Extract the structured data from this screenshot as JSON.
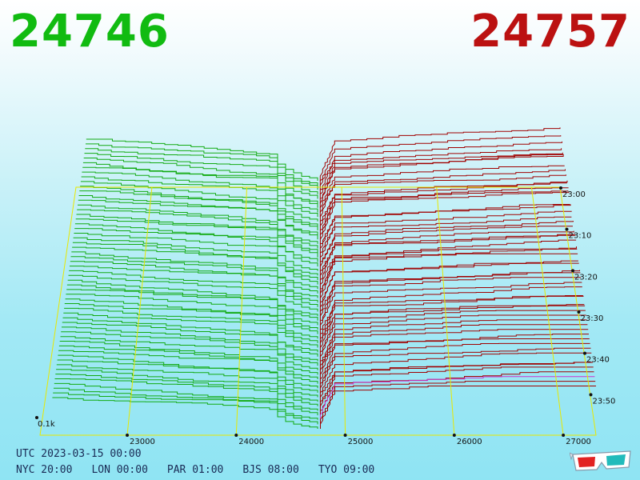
{
  "bid_price": "24746",
  "ask_price": "24757",
  "utc_label": "UTC 2023-03-15 00:00",
  "zones": [
    {
      "city": "NYC",
      "time": "20:00"
    },
    {
      "city": "LON",
      "time": "00:00"
    },
    {
      "city": "PAR",
      "time": "01:00"
    },
    {
      "city": "BJS",
      "time": "08:00"
    },
    {
      "city": "TYO",
      "time": "09:00"
    }
  ],
  "colors": {
    "bid": "#11aa11",
    "ask": "#a00000",
    "grid": "#e8e800",
    "current": "#cc33cc",
    "axis": "#1a2a55"
  },
  "chart_data": {
    "type": "line",
    "title": "",
    "x_axis_ticks": [
      "23000",
      "24000",
      "25000",
      "26000",
      "27000"
    ],
    "x_range": [
      22200,
      27300
    ],
    "depth_label": "0.1k",
    "time_ticks": [
      "23:00",
      "23:10",
      "23:20",
      "23:30",
      "23:40",
      "23:50"
    ],
    "time_range": [
      "23:00",
      "00:00"
    ],
    "bid_price": 24746,
    "ask_price": 24757,
    "series": [
      {
        "side": "bid",
        "color": "#11aa11"
      },
      {
        "side": "ask",
        "color": "#a00000"
      }
    ]
  }
}
